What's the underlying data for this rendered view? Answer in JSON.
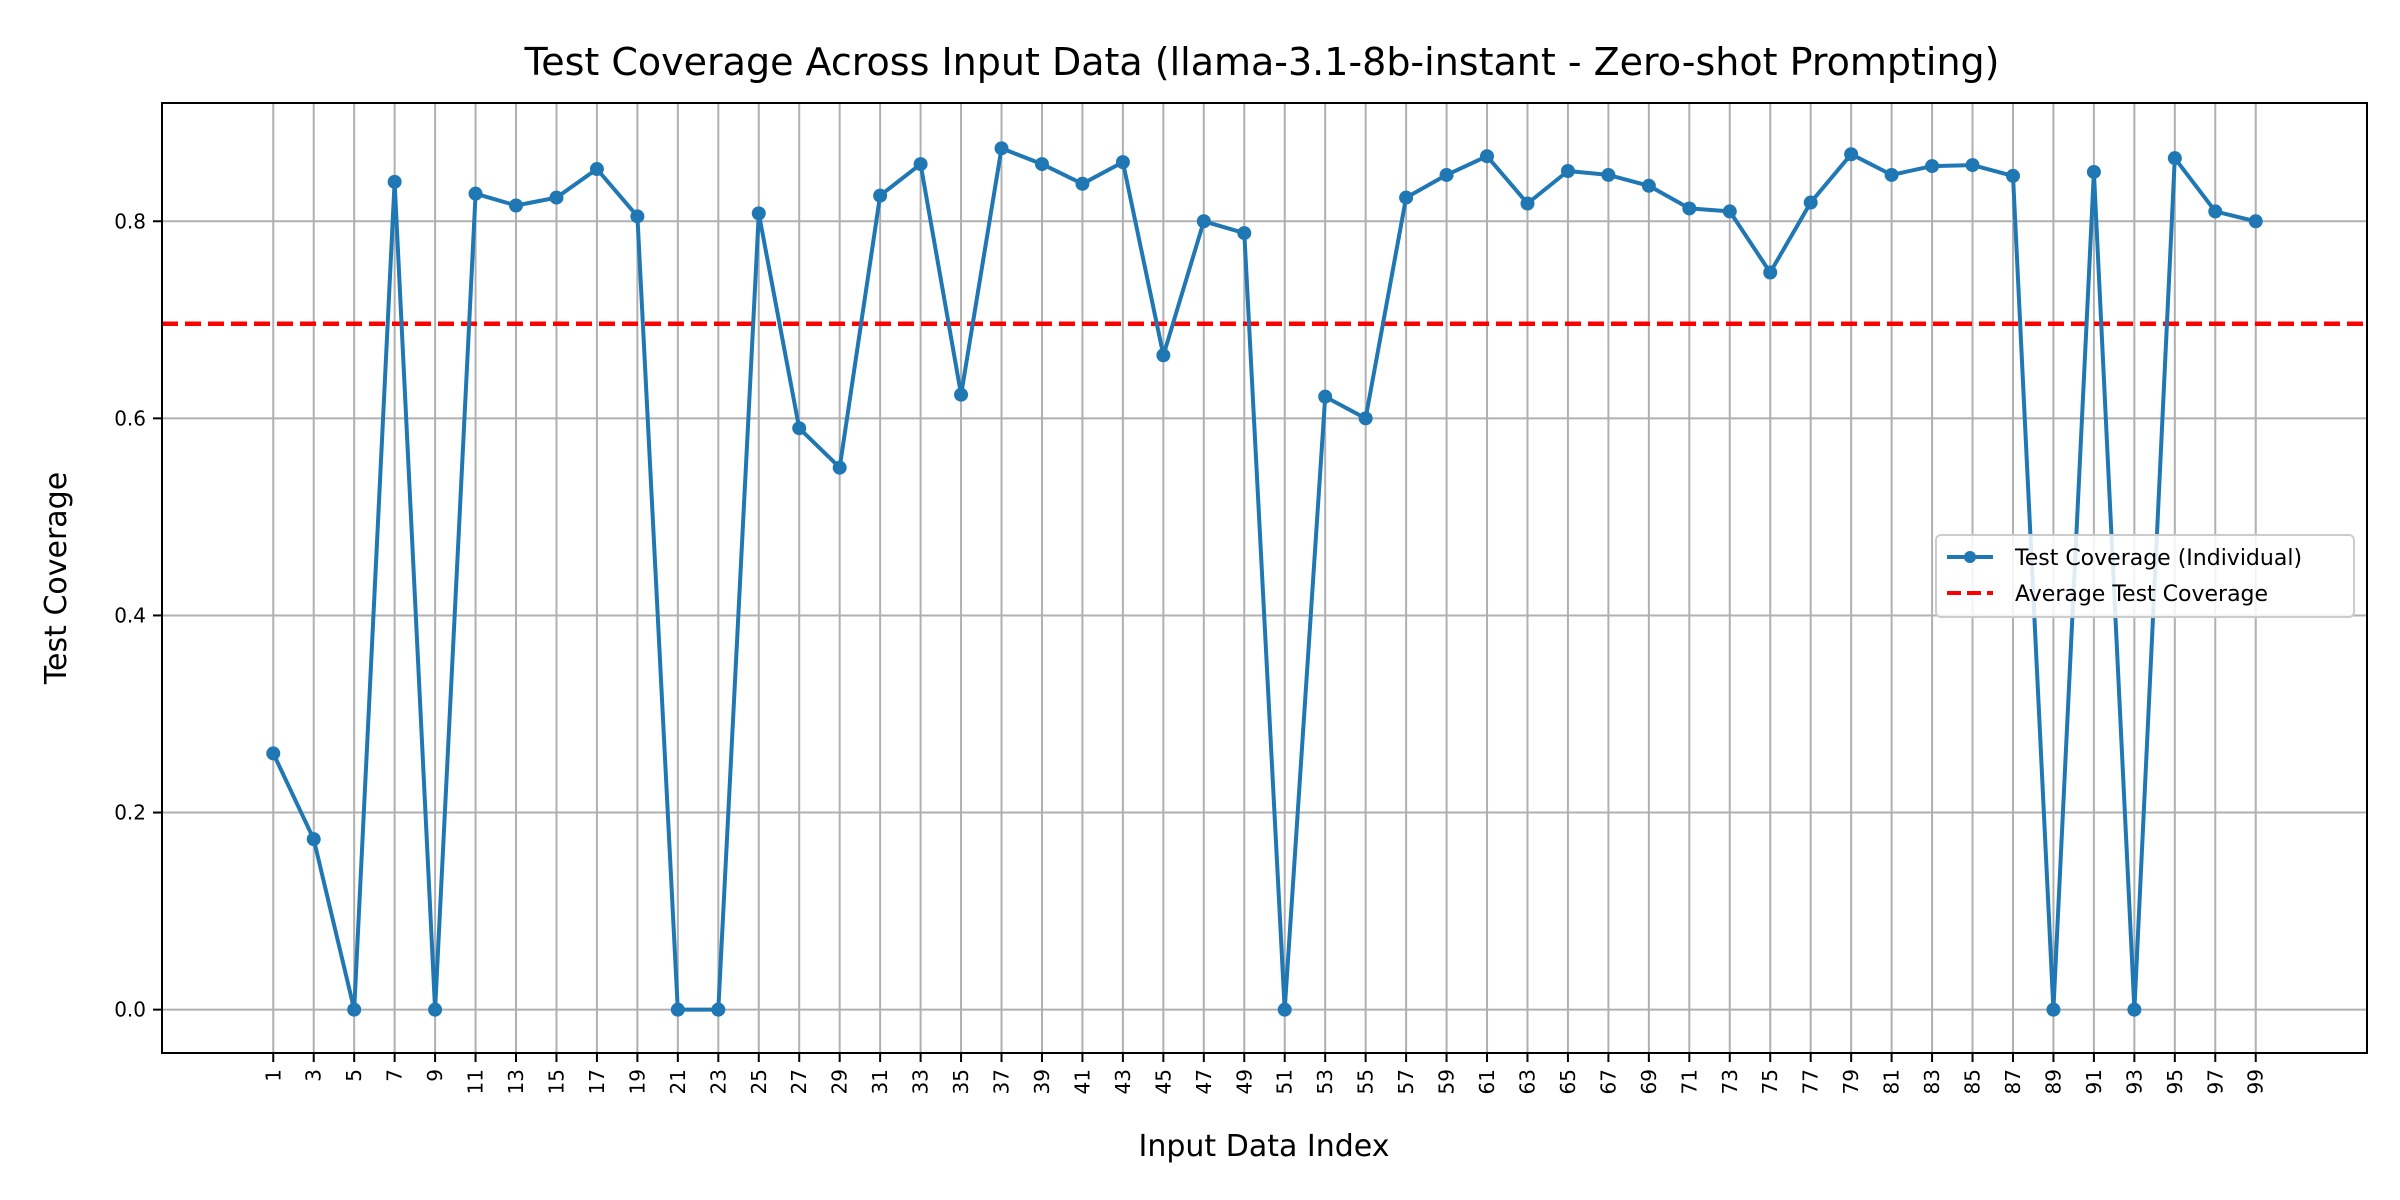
{
  "chart_data": {
    "type": "line",
    "title": "Test Coverage Across Input Data (llama-3.1-8b-instant - Zero-shot Prompting)",
    "xlabel": "Input Data Index",
    "ylabel": "Test Coverage",
    "x_ticks": [
      1,
      3,
      5,
      7,
      9,
      11,
      13,
      15,
      17,
      19,
      21,
      23,
      25,
      27,
      29,
      31,
      33,
      35,
      37,
      39,
      41,
      43,
      45,
      47,
      49,
      51,
      53,
      55,
      57,
      59,
      61,
      63,
      65,
      67,
      69,
      71,
      73,
      75,
      77,
      79,
      81,
      83,
      85,
      87,
      89,
      91,
      93,
      95,
      97,
      99
    ],
    "y_ticks": [
      0.0,
      0.2,
      0.4,
      0.6,
      0.8
    ],
    "y_tick_labels": [
      "0.0",
      "0.2",
      "0.4",
      "0.6",
      "0.8"
    ],
    "xlim": [
      -4.5,
      104.5
    ],
    "ylim": [
      -0.044,
      0.92
    ],
    "grid": true,
    "legend_position": "center-right",
    "series": [
      {
        "name": "Test Coverage (Individual)",
        "color": "#1f77b4",
        "style": "solid-with-markers",
        "x": [
          1,
          3,
          5,
          7,
          9,
          11,
          13,
          15,
          17,
          19,
          21,
          23,
          25,
          27,
          29,
          31,
          33,
          35,
          37,
          39,
          41,
          43,
          45,
          47,
          49,
          51,
          53,
          55,
          57,
          59,
          61,
          63,
          65,
          67,
          69,
          71,
          73,
          75,
          77,
          79,
          81,
          83,
          85,
          87,
          89,
          91,
          93,
          95,
          97,
          99
        ],
        "values": [
          0.26,
          0.173,
          0.0,
          0.84,
          0.0,
          0.828,
          0.816,
          0.824,
          0.853,
          0.805,
          0.0,
          0.0,
          0.808,
          0.59,
          0.55,
          0.826,
          0.858,
          0.624,
          0.874,
          0.858,
          0.838,
          0.86,
          0.664,
          0.8,
          0.788,
          0.0,
          0.622,
          0.6,
          0.824,
          0.847,
          0.866,
          0.818,
          0.851,
          0.847,
          0.836,
          0.813,
          0.81,
          0.748,
          0.819,
          0.868,
          0.847,
          0.856,
          0.857,
          0.846,
          0.0,
          0.85,
          0.0,
          0.864,
          0.81,
          0.8
        ]
      },
      {
        "name": "Average Test Coverage",
        "color": "#ff0000",
        "style": "dashed",
        "value": 0.696
      }
    ]
  }
}
